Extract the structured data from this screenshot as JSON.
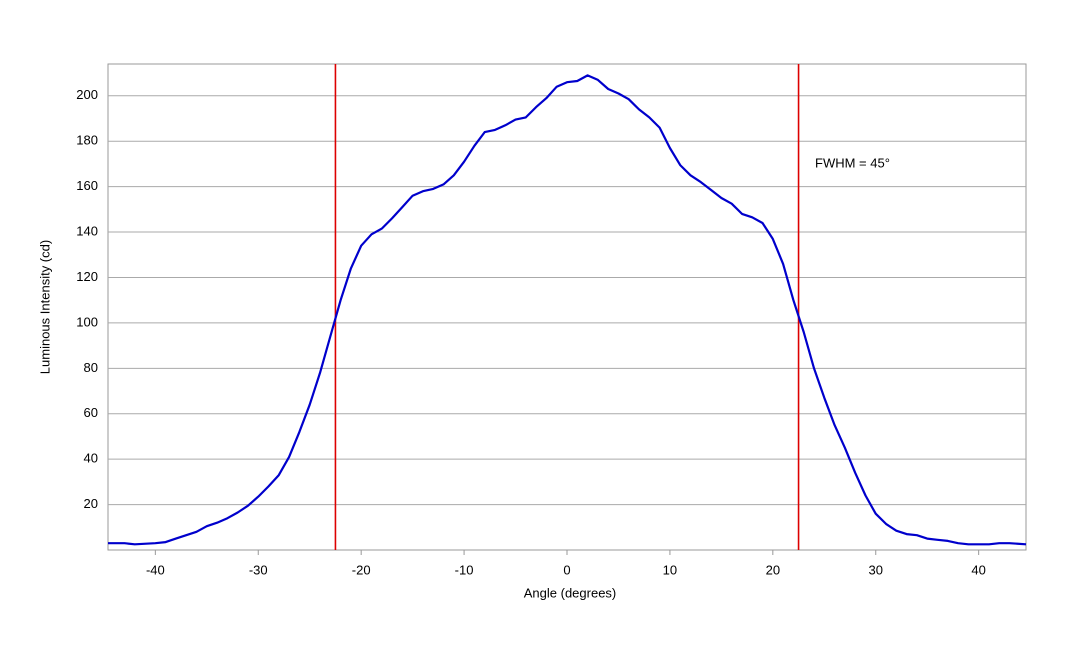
{
  "chart_data": {
    "type": "line",
    "x_label": "Angle (degrees)",
    "y_label": "Luminous Intensity (cd)",
    "annotation": "FWHM = 45°",
    "x": [
      -44.6,
      -43,
      -42,
      -40,
      -39,
      -38,
      -37,
      -36,
      -35,
      -34,
      -33,
      -32,
      -31,
      -30,
      -29,
      -28,
      -27,
      -26,
      -25,
      -24,
      -23,
      -22,
      -21,
      -20,
      -19,
      -18,
      -17,
      -16,
      -15,
      -14,
      -13,
      -12,
      -11,
      -10,
      -9,
      -8,
      -7,
      -6,
      -5,
      -4,
      -3,
      -2,
      -1,
      0,
      1,
      2,
      3,
      4,
      5,
      6,
      7,
      8,
      9,
      10,
      11,
      12,
      13,
      14,
      15,
      16,
      17,
      18,
      19,
      20,
      21,
      22,
      23,
      24,
      25,
      26,
      27,
      28,
      29,
      30,
      31,
      32,
      33,
      34,
      35,
      36,
      37,
      38,
      39,
      40,
      41,
      42,
      43,
      44.6
    ],
    "series": [
      {
        "color": "#0000cc",
        "values": [
          3,
          3,
          2.5,
          3,
          3.5,
          5,
          6.5,
          8,
          10.5,
          12,
          14,
          16.5,
          19.5,
          23.5,
          28,
          33,
          41,
          52,
          64,
          78,
          94,
          110,
          124,
          134,
          139,
          141.5,
          146,
          151,
          156,
          158,
          159,
          161,
          165,
          171,
          178,
          184,
          185,
          187,
          189.5,
          190.5,
          195,
          199,
          204,
          206,
          206.5,
          209,
          207,
          203,
          201,
          198.5,
          194,
          190.5,
          186,
          177,
          169.5,
          165,
          162,
          158.5,
          155,
          152.5,
          148,
          146.5,
          144,
          137,
          126,
          110,
          96,
          80,
          67,
          55,
          45,
          34,
          24,
          16,
          11.5,
          8.5,
          7,
          6.5,
          5,
          4.5,
          4,
          3,
          2.5,
          2.5,
          2.5,
          3,
          3,
          2.5
        ]
      }
    ],
    "vlines": {
      "values": [
        -22.5,
        22.5
      ],
      "color": "#dd0000"
    },
    "xlim": [
      -44.6,
      44.6
    ],
    "ylim": [
      0,
      214
    ],
    "xticks": [
      -40,
      -30,
      -20,
      -10,
      0,
      10,
      20,
      30,
      40
    ],
    "yticks": [
      20,
      40,
      60,
      80,
      100,
      120,
      140,
      160,
      180,
      200
    ],
    "grid": true
  }
}
